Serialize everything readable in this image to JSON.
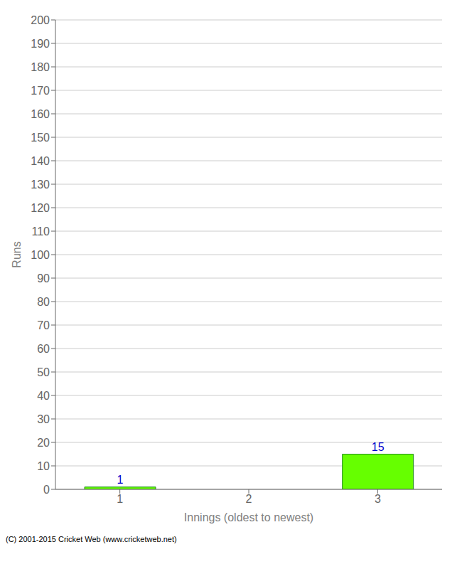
{
  "chart_data": {
    "type": "bar",
    "xlabel": "Innings (oldest to newest)",
    "ylabel": "Runs",
    "categories": [
      "1",
      "2",
      "3"
    ],
    "values": [
      1,
      0,
      15
    ],
    "color": "#66ff00",
    "ylim": [
      0,
      200
    ],
    "yticks": [
      0,
      10,
      20,
      30,
      40,
      50,
      60,
      70,
      80,
      90,
      100,
      110,
      120,
      130,
      140,
      150,
      160,
      170,
      180,
      190,
      200
    ],
    "grid": true,
    "data_labels": true,
    "annotations": [
      "(C) 2001-2015 Cricket Web (www.cricketweb.net)"
    ]
  }
}
